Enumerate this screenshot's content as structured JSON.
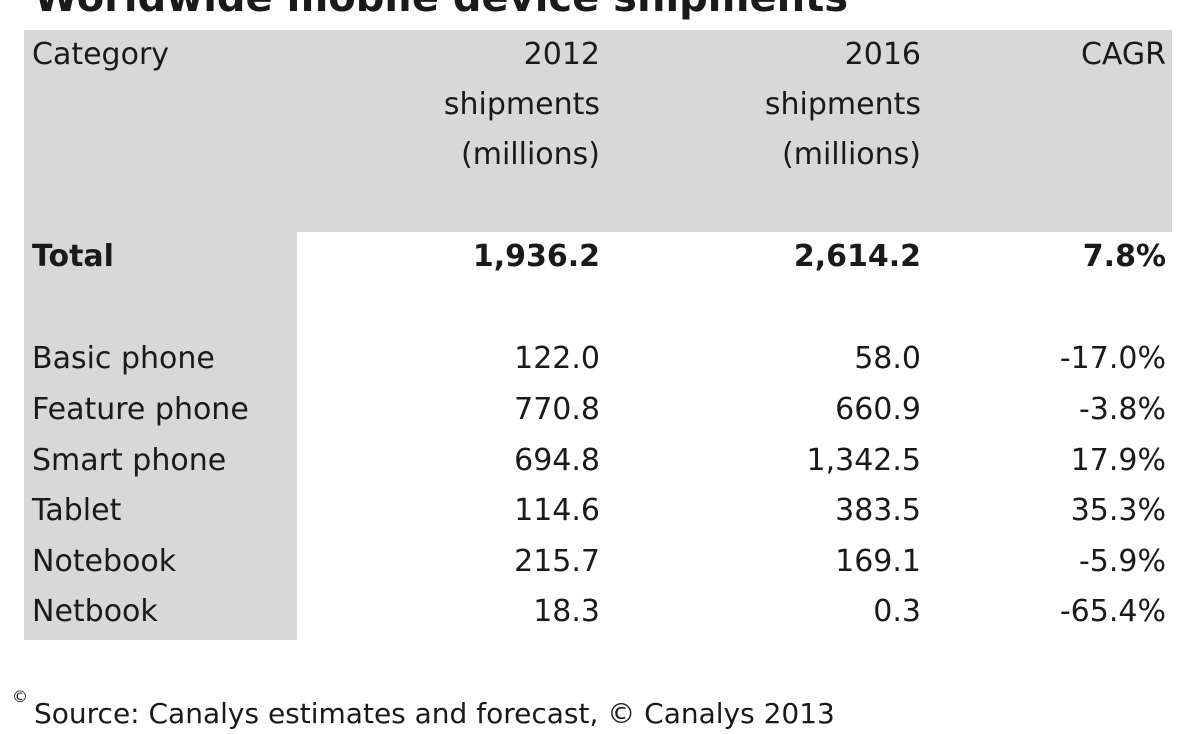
{
  "chart_data": {
    "type": "table",
    "title": "Worldwide mobile device shipments",
    "columns": [
      "Category",
      "2012 shipments (millions)",
      "2016 shipments (millions)",
      "CAGR"
    ],
    "header": {
      "category": "Category",
      "col2012": [
        "2012",
        "shipments",
        "(millions)"
      ],
      "col2016": [
        "2016",
        "shipments",
        "(millions)"
      ],
      "cagr": "CAGR"
    },
    "total": {
      "category": "Total",
      "shipments_2012": "1,936.2",
      "shipments_2016": "2,614.2",
      "cagr": "7.8%"
    },
    "rows": [
      {
        "category": "Basic phone",
        "shipments_2012": "122.0",
        "shipments_2016": "58.0",
        "cagr": "-17.0%"
      },
      {
        "category": "Feature phone",
        "shipments_2012": "770.8",
        "shipments_2016": "660.9",
        "cagr": "-3.8%"
      },
      {
        "category": "Smart phone",
        "shipments_2012": "694.8",
        "shipments_2016": "1,342.5",
        "cagr": "17.9%"
      },
      {
        "category": "Tablet",
        "shipments_2012": "114.6",
        "shipments_2016": "383.5",
        "cagr": "35.3%"
      },
      {
        "category": "Notebook",
        "shipments_2012": "215.7",
        "shipments_2016": "169.1",
        "cagr": "-5.9%"
      },
      {
        "category": "Netbook",
        "shipments_2012": "18.3",
        "shipments_2016": "0.3",
        "cagr": "-65.4%"
      }
    ],
    "source": "Source: Canalys estimates and forecast, © Canalys 2013"
  },
  "watermark": "©",
  "colors": {
    "header_band": "#d8d8d8",
    "text": "#1a1a1a",
    "background": "#ffffff"
  }
}
